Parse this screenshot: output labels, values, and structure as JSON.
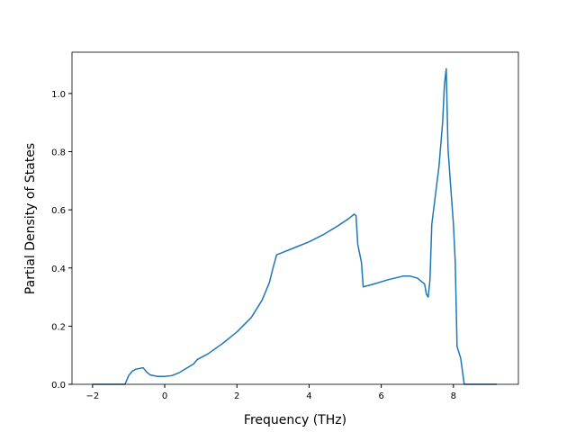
{
  "chart_data": {
    "type": "line",
    "xlabel": "Frequency (THz)",
    "ylabel": "Partial Density of States",
    "color": "#1f77b4",
    "x": [
      -2.0,
      -1.1,
      -1.0,
      -0.9,
      -0.8,
      -0.6,
      -0.5,
      -0.4,
      -0.2,
      0.0,
      0.2,
      0.4,
      0.6,
      0.8,
      0.9,
      1.2,
      1.6,
      2.0,
      2.4,
      2.7,
      2.9,
      3.0,
      3.1,
      3.2,
      3.6,
      4.0,
      4.4,
      4.8,
      5.1,
      5.25,
      5.3,
      5.35,
      5.45,
      5.5,
      5.8,
      6.2,
      6.6,
      6.8,
      7.0,
      7.2,
      7.25,
      7.3,
      7.35,
      7.4,
      7.5,
      7.6,
      7.7,
      7.75,
      7.8,
      7.85,
      7.9,
      8.0,
      8.05,
      8.1,
      8.2,
      8.3,
      9.2
    ],
    "values": [
      0,
      0,
      0.03,
      0.045,
      0.052,
      0.057,
      0.042,
      0.032,
      0.027,
      0.027,
      0.03,
      0.04,
      0.055,
      0.07,
      0.085,
      0.105,
      0.14,
      0.18,
      0.23,
      0.29,
      0.35,
      0.4,
      0.445,
      0.45,
      0.47,
      0.49,
      0.515,
      0.545,
      0.57,
      0.585,
      0.58,
      0.48,
      0.42,
      0.335,
      0.345,
      0.36,
      0.372,
      0.372,
      0.365,
      0.345,
      0.31,
      0.3,
      0.36,
      0.55,
      0.65,
      0.75,
      0.9,
      1.03,
      1.085,
      0.81,
      0.72,
      0.55,
      0.42,
      0.13,
      0.09,
      0,
      0
    ],
    "xlim": [
      -2.57,
      9.8
    ],
    "ylim": [
      0,
      1.142
    ],
    "xticks": [
      {
        "value": -2,
        "label": "−2"
      },
      0,
      2,
      4,
      6,
      8
    ],
    "yticks": [
      {
        "value": 0,
        "label": "0.0"
      },
      0.2,
      0.4,
      0.6,
      0.8,
      {
        "value": 1,
        "label": "1.0"
      }
    ]
  }
}
